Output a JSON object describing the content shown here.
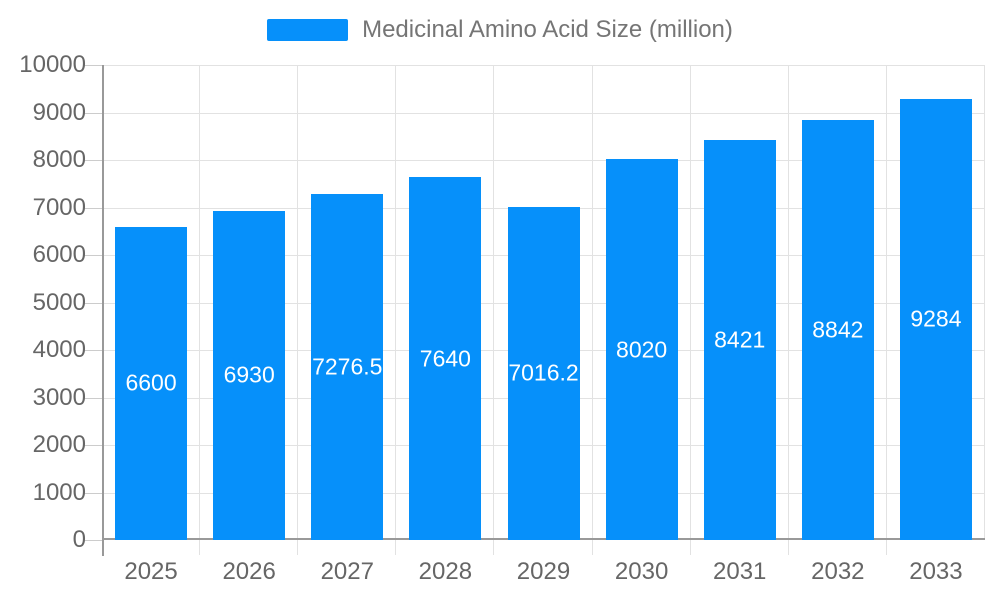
{
  "legend": {
    "label": "Medicinal Amino Acid Size (million)"
  },
  "chart_data": {
    "type": "bar",
    "title": "",
    "categories": [
      "2025",
      "2026",
      "2027",
      "2028",
      "2029",
      "2030",
      "2031",
      "2032",
      "2033"
    ],
    "values": [
      6600,
      6930,
      7276.5,
      7640,
      7016.2,
      8020,
      8421,
      8842,
      9284
    ],
    "bar_labels": [
      "6600",
      "6930",
      "7276.5",
      "7640",
      "7016.2",
      "8020",
      "8421",
      "8842",
      "9284"
    ],
    "series_name": "Medicinal Amino Acid Size (million)",
    "xlabel": "",
    "ylabel": "",
    "ylim": [
      0,
      10000
    ],
    "ytick_step": 1000,
    "ytick_labels": [
      "0",
      "1000",
      "2000",
      "3000",
      "4000",
      "5000",
      "6000",
      "7000",
      "8000",
      "9000",
      "10000"
    ],
    "grid": true,
    "legend_position": "top"
  },
  "colors": {
    "bar": "#0690fa",
    "grid": "#e2e2e2",
    "axis": "#999999",
    "y_tick": "#cccccc",
    "axis_text": "#666666",
    "legend_text": "#757575",
    "bar_label_text": "#ffffff",
    "background": "#ffffff"
  }
}
